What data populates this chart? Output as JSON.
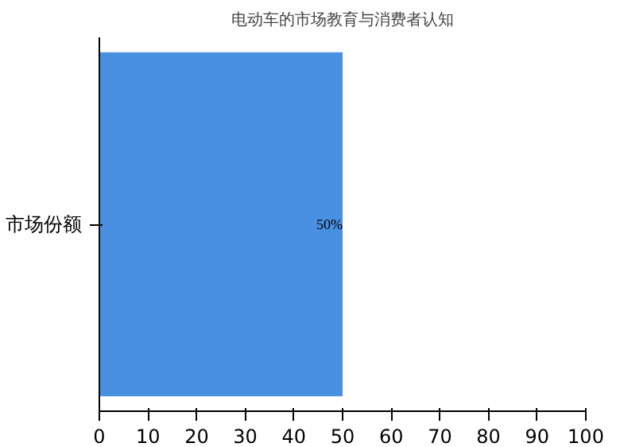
{
  "chart_data": {
    "type": "bar",
    "orientation": "horizontal",
    "title": "电动车的市场教育与消费者认知",
    "categories": [
      "市场份额"
    ],
    "values": [
      50
    ],
    "value_labels": [
      "50%"
    ],
    "color": "#4a90e2",
    "xlim": [
      0,
      100
    ],
    "xticks": [
      0,
      10,
      20,
      30,
      40,
      50,
      60,
      70,
      80,
      90,
      100
    ],
    "grid": false
  }
}
